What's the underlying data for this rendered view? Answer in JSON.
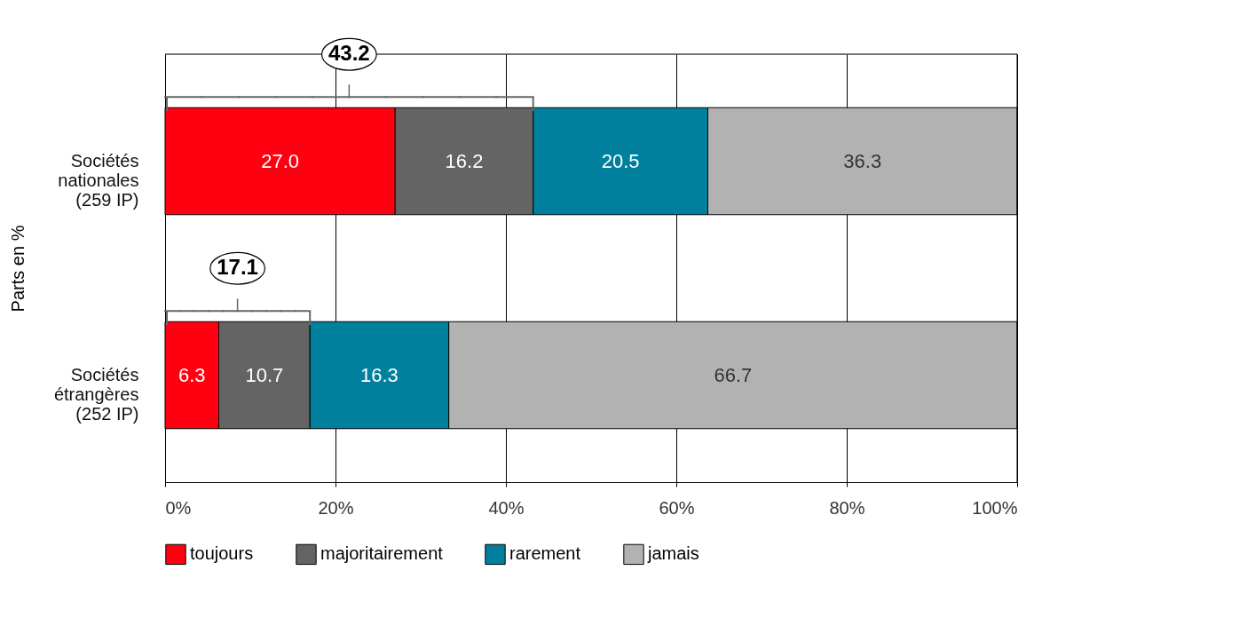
{
  "chart_data": {
    "type": "bar",
    "orientation": "horizontal",
    "stacked": true,
    "ylabel": "Parts en %",
    "categories": [
      "Sociétés\nnationales\n(259 IP)",
      "Sociétés\nétrangères\n(252 IP)"
    ],
    "series": [
      {
        "name": "toujours",
        "color": "#ff0010",
        "values": [
          27.0,
          6.3
        ],
        "value_labels": [
          "27.0",
          "6.3"
        ]
      },
      {
        "name": "majoritairement",
        "color": "#646464",
        "values": [
          16.2,
          10.7
        ],
        "value_labels": [
          "16.2",
          "10.7"
        ]
      },
      {
        "name": "rarement",
        "color": "#00809c",
        "values": [
          20.5,
          16.3
        ],
        "value_labels": [
          "20.5",
          "16.3"
        ]
      },
      {
        "name": "jamais",
        "color": "#b2b2b2",
        "values": [
          36.3,
          66.7
        ],
        "value_labels": [
          "36.3",
          "66.7"
        ]
      }
    ],
    "xlim": [
      0,
      100
    ],
    "xticks": [
      {
        "value": 0,
        "label": "0%"
      },
      {
        "value": 20,
        "label": "20%"
      },
      {
        "value": 40,
        "label": "40%"
      },
      {
        "value": 60,
        "label": "60%"
      },
      {
        "value": 80,
        "label": "80%"
      },
      {
        "value": 100,
        "label": "100%"
      }
    ],
    "grid": "x",
    "legend": "bottom",
    "annotations": [
      "43.2",
      "17.1"
    ]
  }
}
